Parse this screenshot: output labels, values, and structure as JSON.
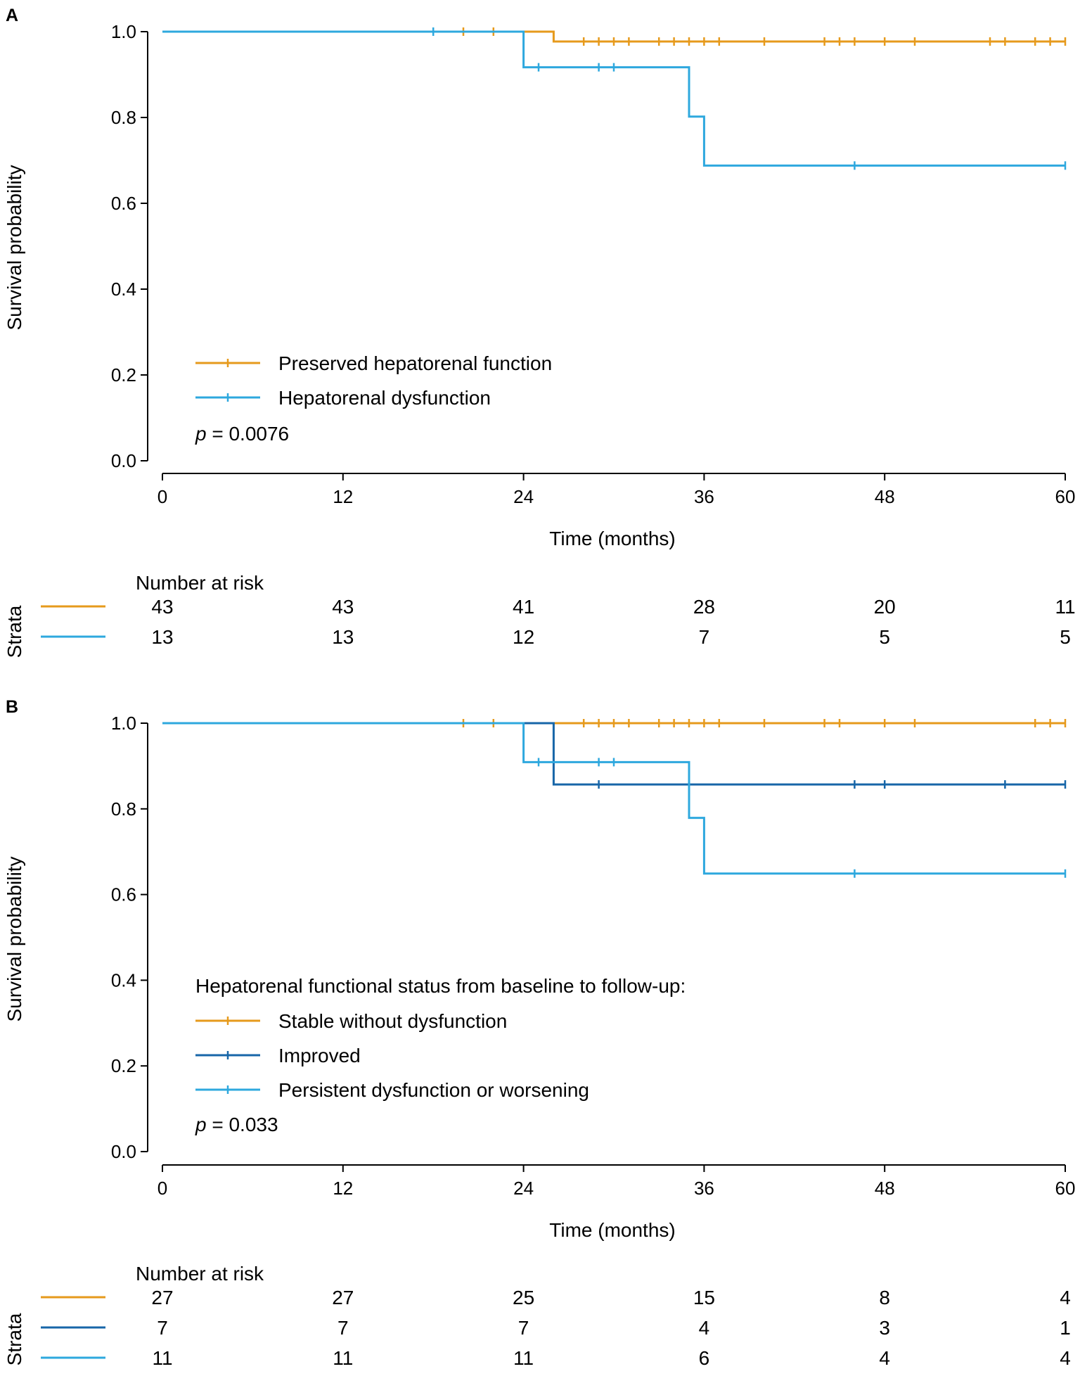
{
  "colors": {
    "orange": "#E69A1C",
    "light_blue": "#2EA8DE",
    "dark_blue": "#1766A8",
    "axis": "#000000"
  },
  "chart_data": [
    {
      "type": "line",
      "subtype": "kaplan-meier",
      "panel_label": "A",
      "xlabel": "Time (months)",
      "ylabel": "Survival probability",
      "xlim": [
        0,
        60
      ],
      "ylim": [
        0,
        1
      ],
      "xticks": [
        0,
        12,
        24,
        36,
        48,
        60
      ],
      "yticks": [
        0.0,
        0.2,
        0.4,
        0.6,
        0.8,
        1.0
      ],
      "ytick_labels": [
        "0.0",
        "0.2",
        "0.4",
        "0.6",
        "0.8",
        "1.0"
      ],
      "legend_title": "",
      "p_value_prefix": "p",
      "p_value_text": " = 0.0076",
      "series": [
        {
          "name": "Preserved hepatorenal function",
          "color_key": "orange",
          "steps": [
            [
              0,
              1.0
            ],
            [
              26,
              0.977
            ],
            [
              60,
              0.977
            ]
          ],
          "censor_times": [
            20,
            22,
            28,
            29,
            30,
            31,
            33,
            34,
            35,
            36,
            37,
            40,
            44,
            45,
            46,
            48,
            50,
            55,
            56,
            58,
            59,
            60
          ]
        },
        {
          "name": "Hepatorenal dysfunction",
          "color_key": "light_blue",
          "steps": [
            [
              0,
              1.0
            ],
            [
              24,
              0.917
            ],
            [
              35,
              0.802
            ],
            [
              36,
              0.688
            ],
            [
              60,
              0.688
            ]
          ],
          "censor_times": [
            18,
            25,
            29,
            30,
            46,
            60
          ]
        }
      ],
      "risk_table": {
        "title": "Number at risk",
        "strata_label": "Strata",
        "times": [
          0,
          12,
          24,
          36,
          48,
          60
        ],
        "rows": [
          {
            "color_key": "orange",
            "values": [
              "43",
              "43",
              "41",
              "28",
              "20",
              "11"
            ]
          },
          {
            "color_key": "light_blue",
            "values": [
              "13",
              "13",
              "12",
              "7",
              "5",
              "5"
            ]
          }
        ]
      }
    },
    {
      "type": "line",
      "subtype": "kaplan-meier",
      "panel_label": "B",
      "xlabel": "Time (months)",
      "ylabel": "Survival probability",
      "xlim": [
        0,
        60
      ],
      "ylim": [
        0,
        1
      ],
      "xticks": [
        0,
        12,
        24,
        36,
        48,
        60
      ],
      "yticks": [
        0.0,
        0.2,
        0.4,
        0.6,
        0.8,
        1.0
      ],
      "ytick_labels": [
        "0.0",
        "0.2",
        "0.4",
        "0.6",
        "0.8",
        "1.0"
      ],
      "legend_title": "Hepatorenal functional status from baseline to follow-up:",
      "p_value_prefix": "p",
      "p_value_text": " = 0.033",
      "series": [
        {
          "name": "Stable without dysfunction",
          "color_key": "orange",
          "steps": [
            [
              0,
              1.0
            ],
            [
              60,
              1.0
            ]
          ],
          "censor_times": [
            20,
            22,
            28,
            29,
            30,
            31,
            33,
            34,
            35,
            36,
            37,
            40,
            44,
            45,
            48,
            50,
            58,
            59,
            60
          ]
        },
        {
          "name": "Improved",
          "color_key": "dark_blue",
          "steps": [
            [
              0,
              1.0
            ],
            [
              26,
              0.857
            ],
            [
              60,
              0.857
            ]
          ],
          "censor_times": [
            29,
            46,
            48,
            56,
            60
          ]
        },
        {
          "name": "Persistent dysfunction or worsening",
          "color_key": "light_blue",
          "steps": [
            [
              0,
              1.0
            ],
            [
              24,
              0.909
            ],
            [
              35,
              0.779
            ],
            [
              36,
              0.649
            ],
            [
              60,
              0.649
            ]
          ],
          "censor_times": [
            25,
            29,
            30,
            46,
            60
          ]
        }
      ],
      "risk_table": {
        "title": "Number at risk",
        "strata_label": "Strata",
        "times": [
          0,
          12,
          24,
          36,
          48,
          60
        ],
        "rows": [
          {
            "color_key": "orange",
            "values": [
              "27",
              "27",
              "25",
              "15",
              "8",
              "4"
            ]
          },
          {
            "color_key": "dark_blue",
            "values": [
              "7",
              "7",
              "7",
              "4",
              "3",
              "1"
            ]
          },
          {
            "color_key": "light_blue",
            "values": [
              "11",
              "11",
              "11",
              "6",
              "4",
              "4"
            ]
          }
        ]
      }
    }
  ]
}
